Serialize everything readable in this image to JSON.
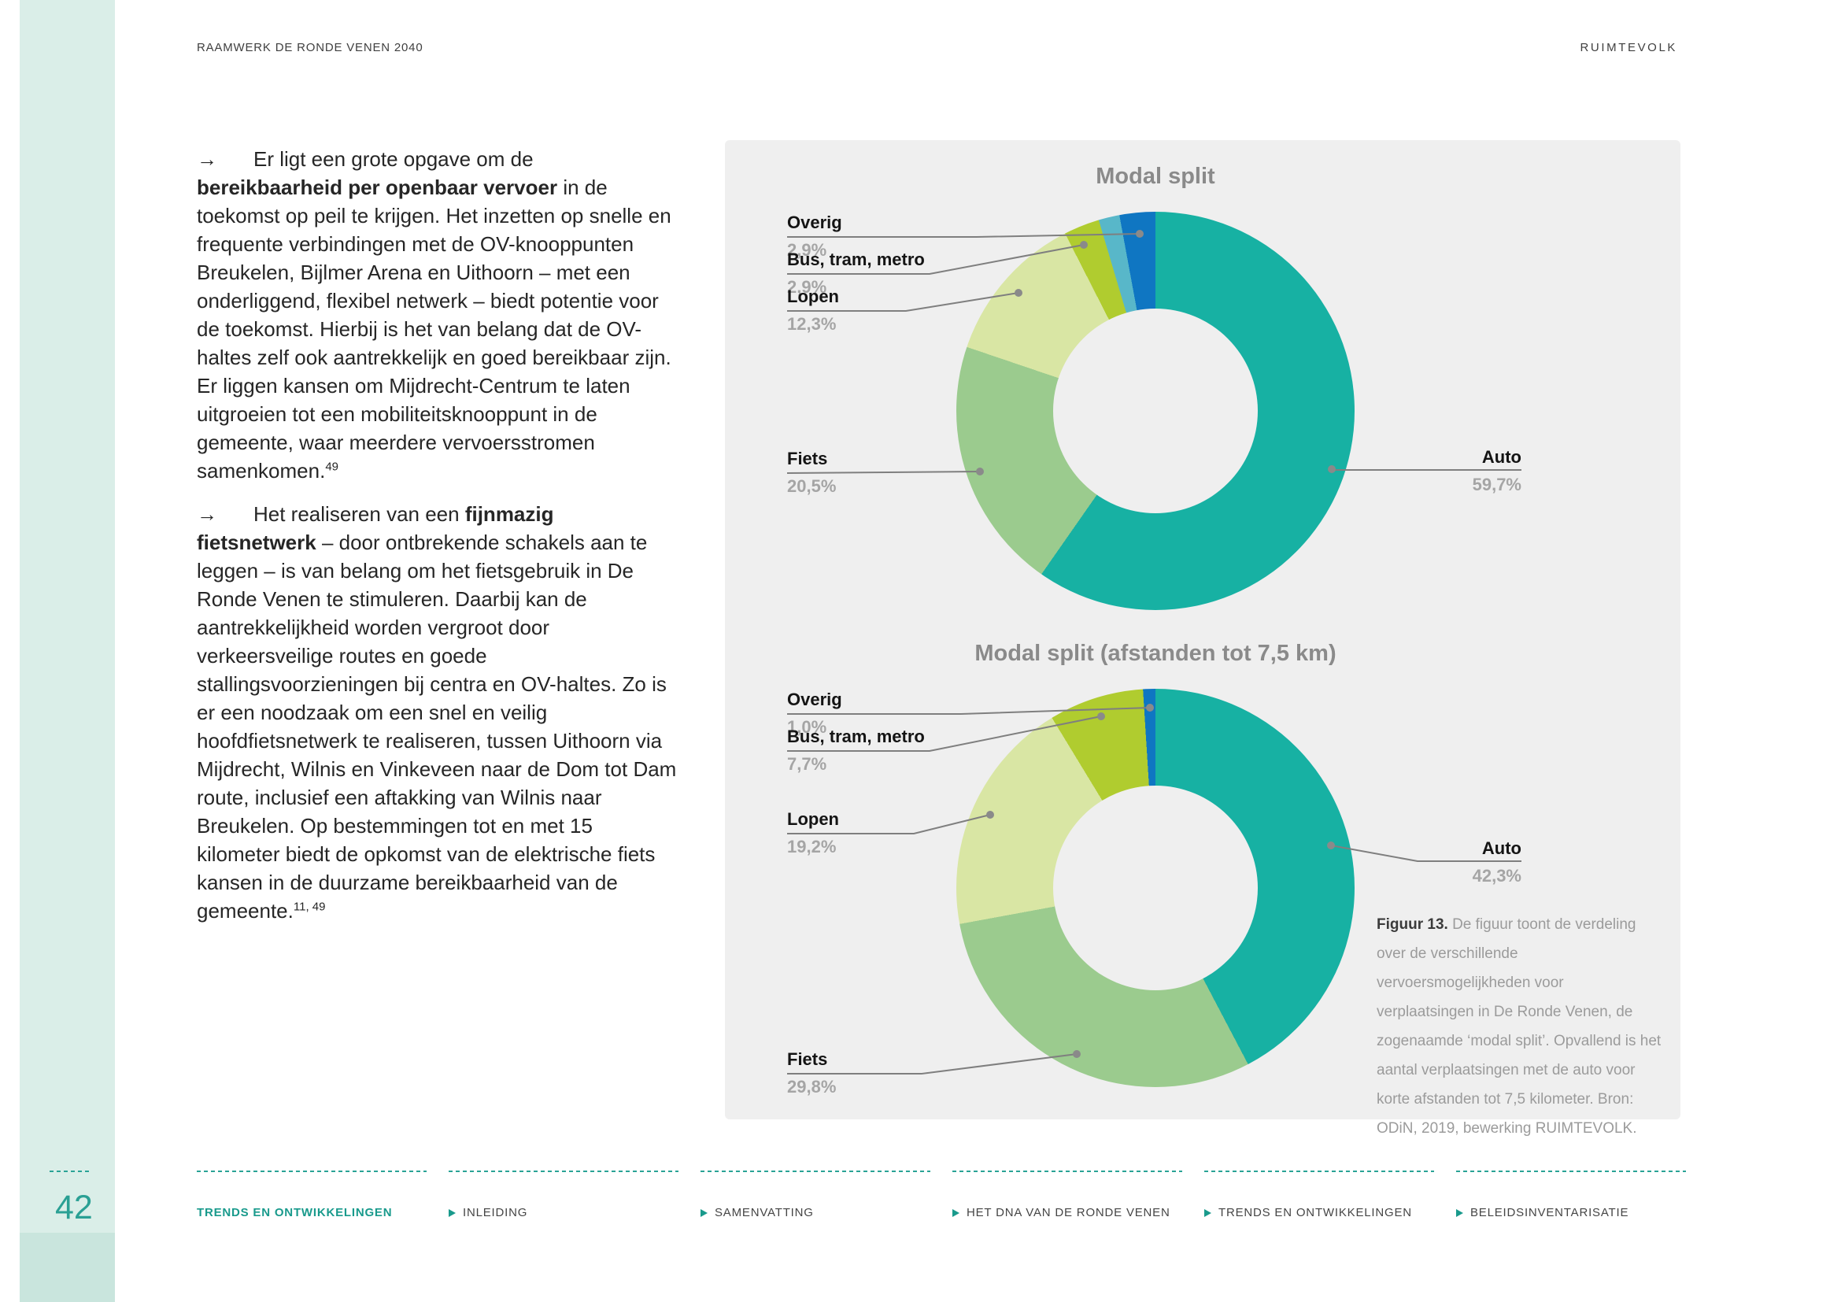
{
  "header": {
    "left": "RAAMWERK DE RONDE VENEN 2040",
    "right": "RUIMTEVOLK"
  },
  "main": {
    "paragraphs": [
      {
        "segments": [
          {
            "t": "→",
            "s": "arrow"
          },
          {
            "t": "Er ligt een grote opgave om de ",
            "s": "n"
          },
          {
            "t": "bereikbaarheid per openbaar vervoer",
            "s": "b"
          },
          {
            "t": " in de toekomst op peil te krijgen. Het inzetten op snelle en frequente verbindingen met de OV-knooppunten Breukelen, Bijlmer Arena en Uithoorn – met een onderliggend, flexibel netwerk – biedt potentie voor de toekomst. Hierbij is het van belang dat de OV-haltes zelf ook aantrekkelijk en goed bereikbaar zijn. Er liggen kansen om Mijdrecht-Centrum te laten uitgroeien tot een mobiliteitsknooppunt in de gemeente, waar meerdere vervoersstromen samenkomen.",
            "s": "n"
          },
          {
            "t": "49",
            "s": "sup"
          }
        ]
      },
      {
        "segments": [
          {
            "t": "→",
            "s": "arrow"
          },
          {
            "t": "Het realiseren van een ",
            "s": "n"
          },
          {
            "t": "fijnmazig fietsnetwerk",
            "s": "b"
          },
          {
            "t": " – door ontbrekende schakels aan te leggen – is van belang om het fietsgebruik in De Ronde Venen te stimuleren. Daarbij kan de aantrekkelijkheid worden vergroot door verkeersveilige routes en goede stallingsvoorzieningen bij centra en OV-haltes. Zo is er een noodzaak om een snel en veilig hoofdfietsnetwerk te realiseren, tussen Uithoorn via Mijdrecht, Wilnis en Vinkeveen naar de Dom tot Dam route, inclusief een aftakking van Wilnis naar Breukelen. Op bestemmingen tot en met 15 kilometer biedt de opkomst van de elektrische fiets kansen in de duurzame bereikbaarheid van de gemeente.",
            "s": "n"
          },
          {
            "t": "11, 49",
            "s": "sup"
          }
        ]
      }
    ]
  },
  "chart_data": [
    {
      "type": "pie",
      "subtype": "donut",
      "title": "Modal split",
      "unit": "%",
      "legend_position": "callouts",
      "slices": [
        {
          "label": "Auto",
          "value": 59.7,
          "display": "59,7%",
          "color": "#17b1a3"
        },
        {
          "label": "Fiets",
          "value": 20.5,
          "display": "20,5%",
          "color": "#9bcb8e"
        },
        {
          "label": "Lopen",
          "value": 12.3,
          "display": "12,3%",
          "color": "#d9e6a4"
        },
        {
          "label": "Bus, tram, metro",
          "value": 2.9,
          "display": "2,9%",
          "color": "#b0cc2f"
        },
        {
          "label": "",
          "value": 1.7,
          "display": "",
          "color": "#58b7c9"
        },
        {
          "label": "Overig",
          "value": 2.9,
          "display": "2,9%",
          "color": "#0f76c2"
        }
      ]
    },
    {
      "type": "pie",
      "subtype": "donut",
      "title": "Modal split (afstanden tot 7,5 km)",
      "unit": "%",
      "legend_position": "callouts",
      "slices": [
        {
          "label": "Auto",
          "value": 42.3,
          "display": "42,3%",
          "color": "#17b1a3"
        },
        {
          "label": "Fiets",
          "value": 29.8,
          "display": "29,8%",
          "color": "#9bcb8e"
        },
        {
          "label": "Lopen",
          "value": 19.2,
          "display": "19,2%",
          "color": "#d9e6a4"
        },
        {
          "label": "Bus, tram, metro",
          "value": 7.7,
          "display": "7,7%",
          "color": "#b0cc2f"
        },
        {
          "label": "Overig",
          "value": 1.0,
          "display": "1,0%",
          "color": "#0f76c2"
        }
      ]
    }
  ],
  "figure": {
    "caption_label": "Figuur 13.",
    "caption_text": " De figuur toont de verdeling over de verschillende vervoersmogelijkheden voor verplaatsingen in De Ronde Venen, de zogenaamde ‘modal split’. Opvallend is het aantal verplaatsingen met de auto voor korte afstanden tot 7,5 kilometer. Bron: ODiN, 2019, bewerking RUIMTEVOLK."
  },
  "footer": {
    "page_number": "42",
    "items": [
      {
        "label": "TRENDS EN ONTWIKKELINGEN",
        "active": true
      },
      {
        "label": "INLEIDING",
        "active": false
      },
      {
        "label": "SAMENVATTING",
        "active": false
      },
      {
        "label": "HET DNA VAN DE RONDE VENEN",
        "active": false
      },
      {
        "label": "TRENDS EN ONTWIKKELINGEN",
        "active": false
      },
      {
        "label": "BELEIDSINVENTARISATIE",
        "active": false
      }
    ]
  }
}
